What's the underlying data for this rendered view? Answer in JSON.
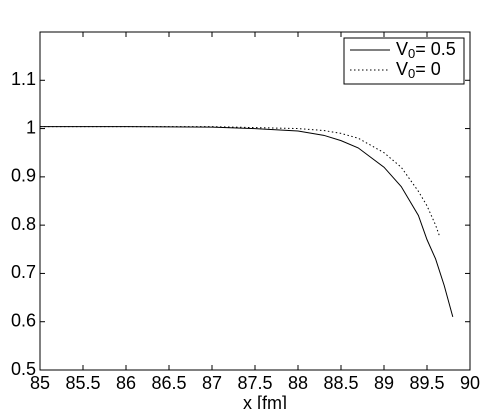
{
  "chart_data": {
    "type": "line",
    "xlabel": "x  [fm]",
    "series": [
      {
        "name": "V0= 0.5",
        "color": "#000000",
        "style": "solid",
        "x": [
          85,
          86,
          87,
          87.5,
          88,
          88.3,
          88.5,
          88.7,
          89,
          89.2,
          89.4,
          89.5,
          89.6,
          89.7,
          89.8
        ],
        "values": [
          1.004,
          1.004,
          1.003,
          1.0,
          0.995,
          0.986,
          0.975,
          0.96,
          0.92,
          0.88,
          0.82,
          0.77,
          0.73,
          0.675,
          0.61
        ]
      },
      {
        "name": "V0= 0",
        "color": "#000000",
        "style": "dotted",
        "x": [
          85,
          86,
          87,
          87.5,
          88,
          88.3,
          88.5,
          88.7,
          89,
          89.2,
          89.4,
          89.5,
          89.6,
          89.65
        ],
        "values": [
          1.004,
          1.004,
          1.004,
          1.002,
          1.0,
          0.996,
          0.99,
          0.98,
          0.95,
          0.92,
          0.87,
          0.84,
          0.8,
          0.775
        ]
      }
    ],
    "xlim": [
      85,
      90
    ],
    "xticks": [
      85,
      85.5,
      86,
      86.5,
      87,
      87.5,
      88,
      88.5,
      89,
      89.5,
      90
    ],
    "ylim": [
      0.5,
      1.2
    ],
    "yticks": [
      0.5,
      0.6,
      0.7,
      0.8,
      0.9,
      1,
      1.1
    ],
    "legend": "upper right",
    "grid": false
  }
}
